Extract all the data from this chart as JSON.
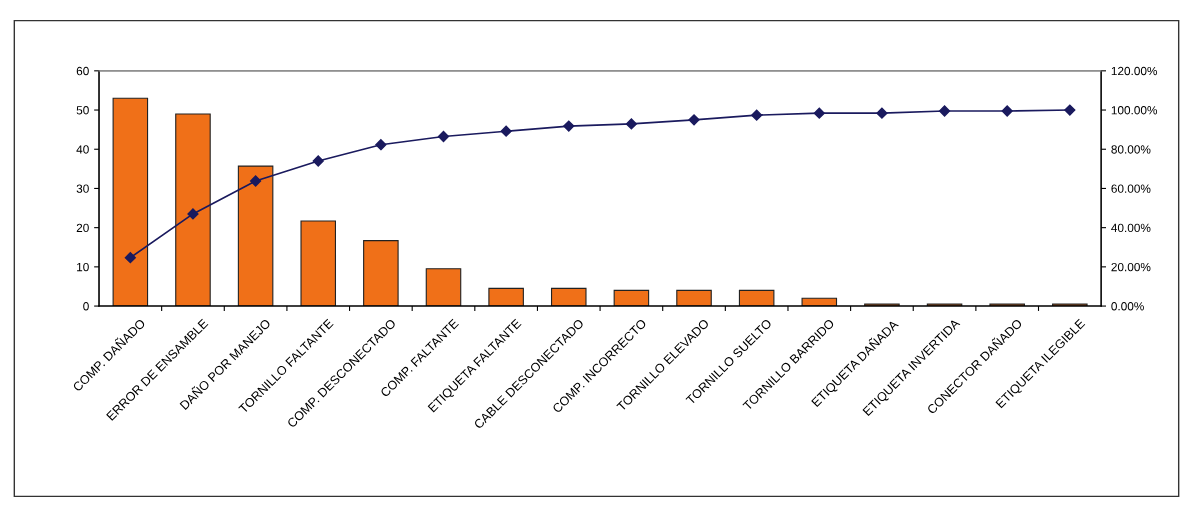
{
  "chart_data": {
    "type": "bar",
    "categories": [
      "COMP. DAÑADO",
      "ERROR DE ENSAMBLE",
      "DAÑO POR MANEJO",
      "TORNILLO FALTANTE",
      "COMP. DESCONECTADO",
      "COMP. FALTANTE",
      "ETIQUETA FALTANTE",
      "CABLE DESCONECTADO",
      "COMP. INCORRECTO",
      "TORNILLO ELEVADO",
      "TORNILLO SUELTO",
      "TORNILLO BARRIDO",
      "ETIQUETA DAÑADA",
      "ETIQUETA INVERTIDA",
      "CONECTOR DAÑADO",
      "ETIQUETA ILEGIBLE"
    ],
    "series": [
      {
        "color": "#f07018",
        "values": [
          53,
          49,
          35.7,
          21.7,
          16.7,
          9.5,
          4.5,
          4.5,
          4,
          4,
          4,
          2,
          0.5,
          0.5,
          0.5,
          0.5
        ]
      },
      {
        "type": "line",
        "axis": "y2",
        "color": "#1a1a5e",
        "marker": "diamond",
        "values": [
          24.7,
          47,
          63.8,
          74,
          82.3,
          86.5,
          89.2,
          91.8,
          92.9,
          95,
          97.4,
          98.4,
          98.4,
          99.5,
          99.5,
          100
        ]
      }
    ],
    "ylim": [
      0,
      60
    ],
    "yticks": [
      0,
      10,
      20,
      30,
      40,
      50,
      60
    ],
    "y2lim": [
      0,
      120
    ],
    "y2ticks": [
      {
        "value": 0,
        "label": "0.00%"
      },
      {
        "value": 20,
        "label": "20.00%"
      },
      {
        "value": 40,
        "label": "40.00%"
      },
      {
        "value": 60,
        "label": "60.00%"
      },
      {
        "value": 80,
        "label": "80.00%"
      },
      {
        "value": 100,
        "label": "100.00%"
      },
      {
        "value": 120,
        "label": "120.00%"
      }
    ],
    "grid": false,
    "legend": false
  }
}
